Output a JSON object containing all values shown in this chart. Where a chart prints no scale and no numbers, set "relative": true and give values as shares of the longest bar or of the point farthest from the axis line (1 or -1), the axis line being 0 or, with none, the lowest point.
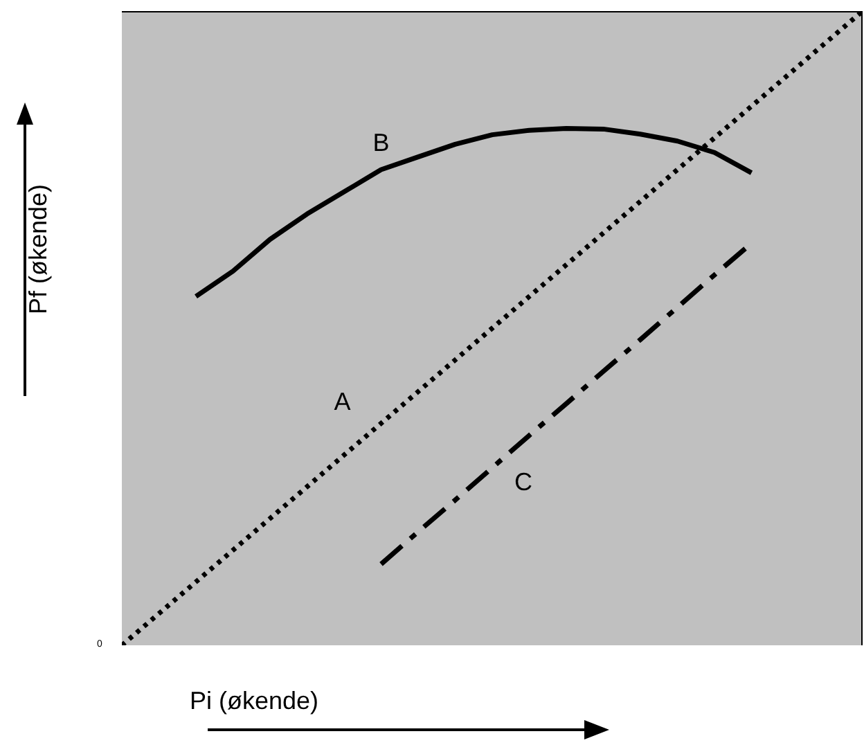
{
  "chart_data": {
    "type": "line",
    "relative": true,
    "xlabel": "Pi (økende)",
    "ylabel": "Pf (økende)",
    "annotations": [
      "0"
    ],
    "marker": "none",
    "categories": [
      null,
      null,
      null,
      null,
      null,
      null,
      null,
      null,
      null,
      null,
      null,
      null,
      null,
      null,
      null,
      null,
      null,
      null,
      null,
      null,
      null
    ],
    "series": [
      {
        "name": "A",
        "color": "#000000",
        "line_style": "dotted",
        "values": [
          0,
          0.05,
          0.1,
          0.15,
          0.2,
          0.25,
          0.3,
          0.35,
          0.4,
          0.45,
          0.5,
          0.55,
          0.6,
          0.65,
          0.7,
          0.75,
          0.8,
          0.85,
          0.9,
          0.95,
          1
        ]
      },
      {
        "name": "B",
        "color": "#000000",
        "line_style": "solid",
        "values": [
          null,
          null,
          0.55,
          0.59,
          0.64,
          0.68,
          0.715,
          0.75,
          0.77,
          0.79,
          0.805,
          0.812,
          0.815,
          0.814,
          0.806,
          0.795,
          0.777,
          0.745,
          null,
          null,
          null
        ]
      },
      {
        "name": "C",
        "color": "#000000",
        "line_style": "dashed",
        "values": [
          null,
          null,
          null,
          null,
          null,
          null,
          null,
          0.128,
          0.179,
          0.229,
          0.28,
          0.331,
          0.381,
          0.432,
          0.482,
          0.533,
          0.584,
          0.634,
          null,
          null,
          null
        ]
      }
    ]
  }
}
